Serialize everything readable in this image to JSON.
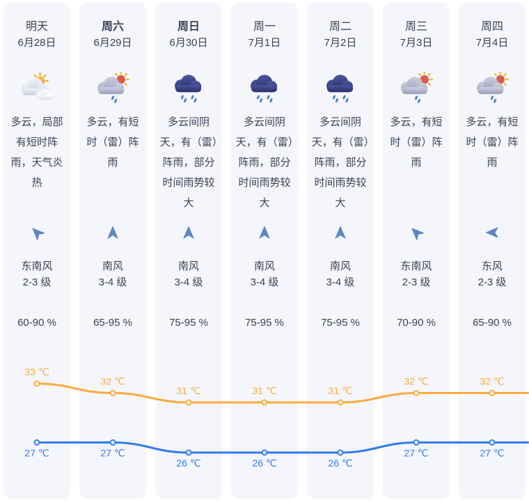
{
  "columns": [
    {
      "day": "明天",
      "date": "6月28日",
      "weekend": false,
      "icon": "partly-cloudy-sun",
      "desc": "多云，局部有短时阵雨，天气炎热",
      "wind_dir": "东南风",
      "wind_level": "2-3 级",
      "humidity": "60-90 %",
      "high": 33,
      "low": 27
    },
    {
      "day": "周六",
      "date": "6月29日",
      "weekend": true,
      "icon": "sun-shower",
      "desc": "多云，有短时（雷）阵雨",
      "wind_dir": "南风",
      "wind_level": "3-4 级",
      "humidity": "65-95 %",
      "high": 32,
      "low": 27
    },
    {
      "day": "周日",
      "date": "6月30日",
      "weekend": true,
      "icon": "rain",
      "desc": "多云间阴天，有（雷）阵雨，部分时间雨势较大",
      "wind_dir": "南风",
      "wind_level": "3-4 级",
      "humidity": "75-95 %",
      "high": 31,
      "low": 26
    },
    {
      "day": "周一",
      "date": "7月1日",
      "weekend": false,
      "icon": "rain",
      "desc": "多云间阴天，有（雷）阵雨，部分时间雨势较大",
      "wind_dir": "南风",
      "wind_level": "3-4 级",
      "humidity": "75-95 %",
      "high": 31,
      "low": 26
    },
    {
      "day": "周二",
      "date": "7月2日",
      "weekend": false,
      "icon": "rain",
      "desc": "多云间阴天，有（雷）阵雨，部分时间雨势较大",
      "wind_dir": "南风",
      "wind_level": "3-4 级",
      "humidity": "75-95 %",
      "high": 31,
      "low": 26
    },
    {
      "day": "周三",
      "date": "7月3日",
      "weekend": false,
      "icon": "sun-shower",
      "desc": "多云，有短时（雷）阵雨",
      "wind_dir": "东南风",
      "wind_level": "2-3 级",
      "humidity": "70-90 %",
      "high": 32,
      "low": 27
    },
    {
      "day": "周四",
      "date": "7月4日",
      "weekend": false,
      "icon": "sun-shower",
      "desc": "多云，有短时（雷）阵雨",
      "wind_dir": "东风",
      "wind_level": "2-3 级",
      "humidity": "65-90 %",
      "high": 32,
      "low": 27
    }
  ],
  "chart_data": {
    "type": "line",
    "categories": [
      "6月28日",
      "6月29日",
      "6月30日",
      "7月1日",
      "7月2日",
      "7月3日",
      "7月4日"
    ],
    "series": [
      {
        "name": "最高气温",
        "values": [
          33,
          32,
          31,
          31,
          31,
          32,
          32
        ],
        "unit": "℃",
        "color": "#fbab3a",
        "label_position": "above"
      },
      {
        "name": "最低气温",
        "values": [
          27,
          27,
          26,
          26,
          26,
          27,
          27
        ],
        "unit": "℃",
        "color": "#2e7cf0",
        "label_position": "below"
      }
    ],
    "grid": false,
    "legend": "none",
    "marker": "open-circle"
  },
  "colors": {
    "card_bg": "#f5f6fb",
    "text": "#3b4056",
    "high_line": "#fbab3a",
    "low_line": "#2e7cf0",
    "wind_arrow": "#5c88bf"
  }
}
